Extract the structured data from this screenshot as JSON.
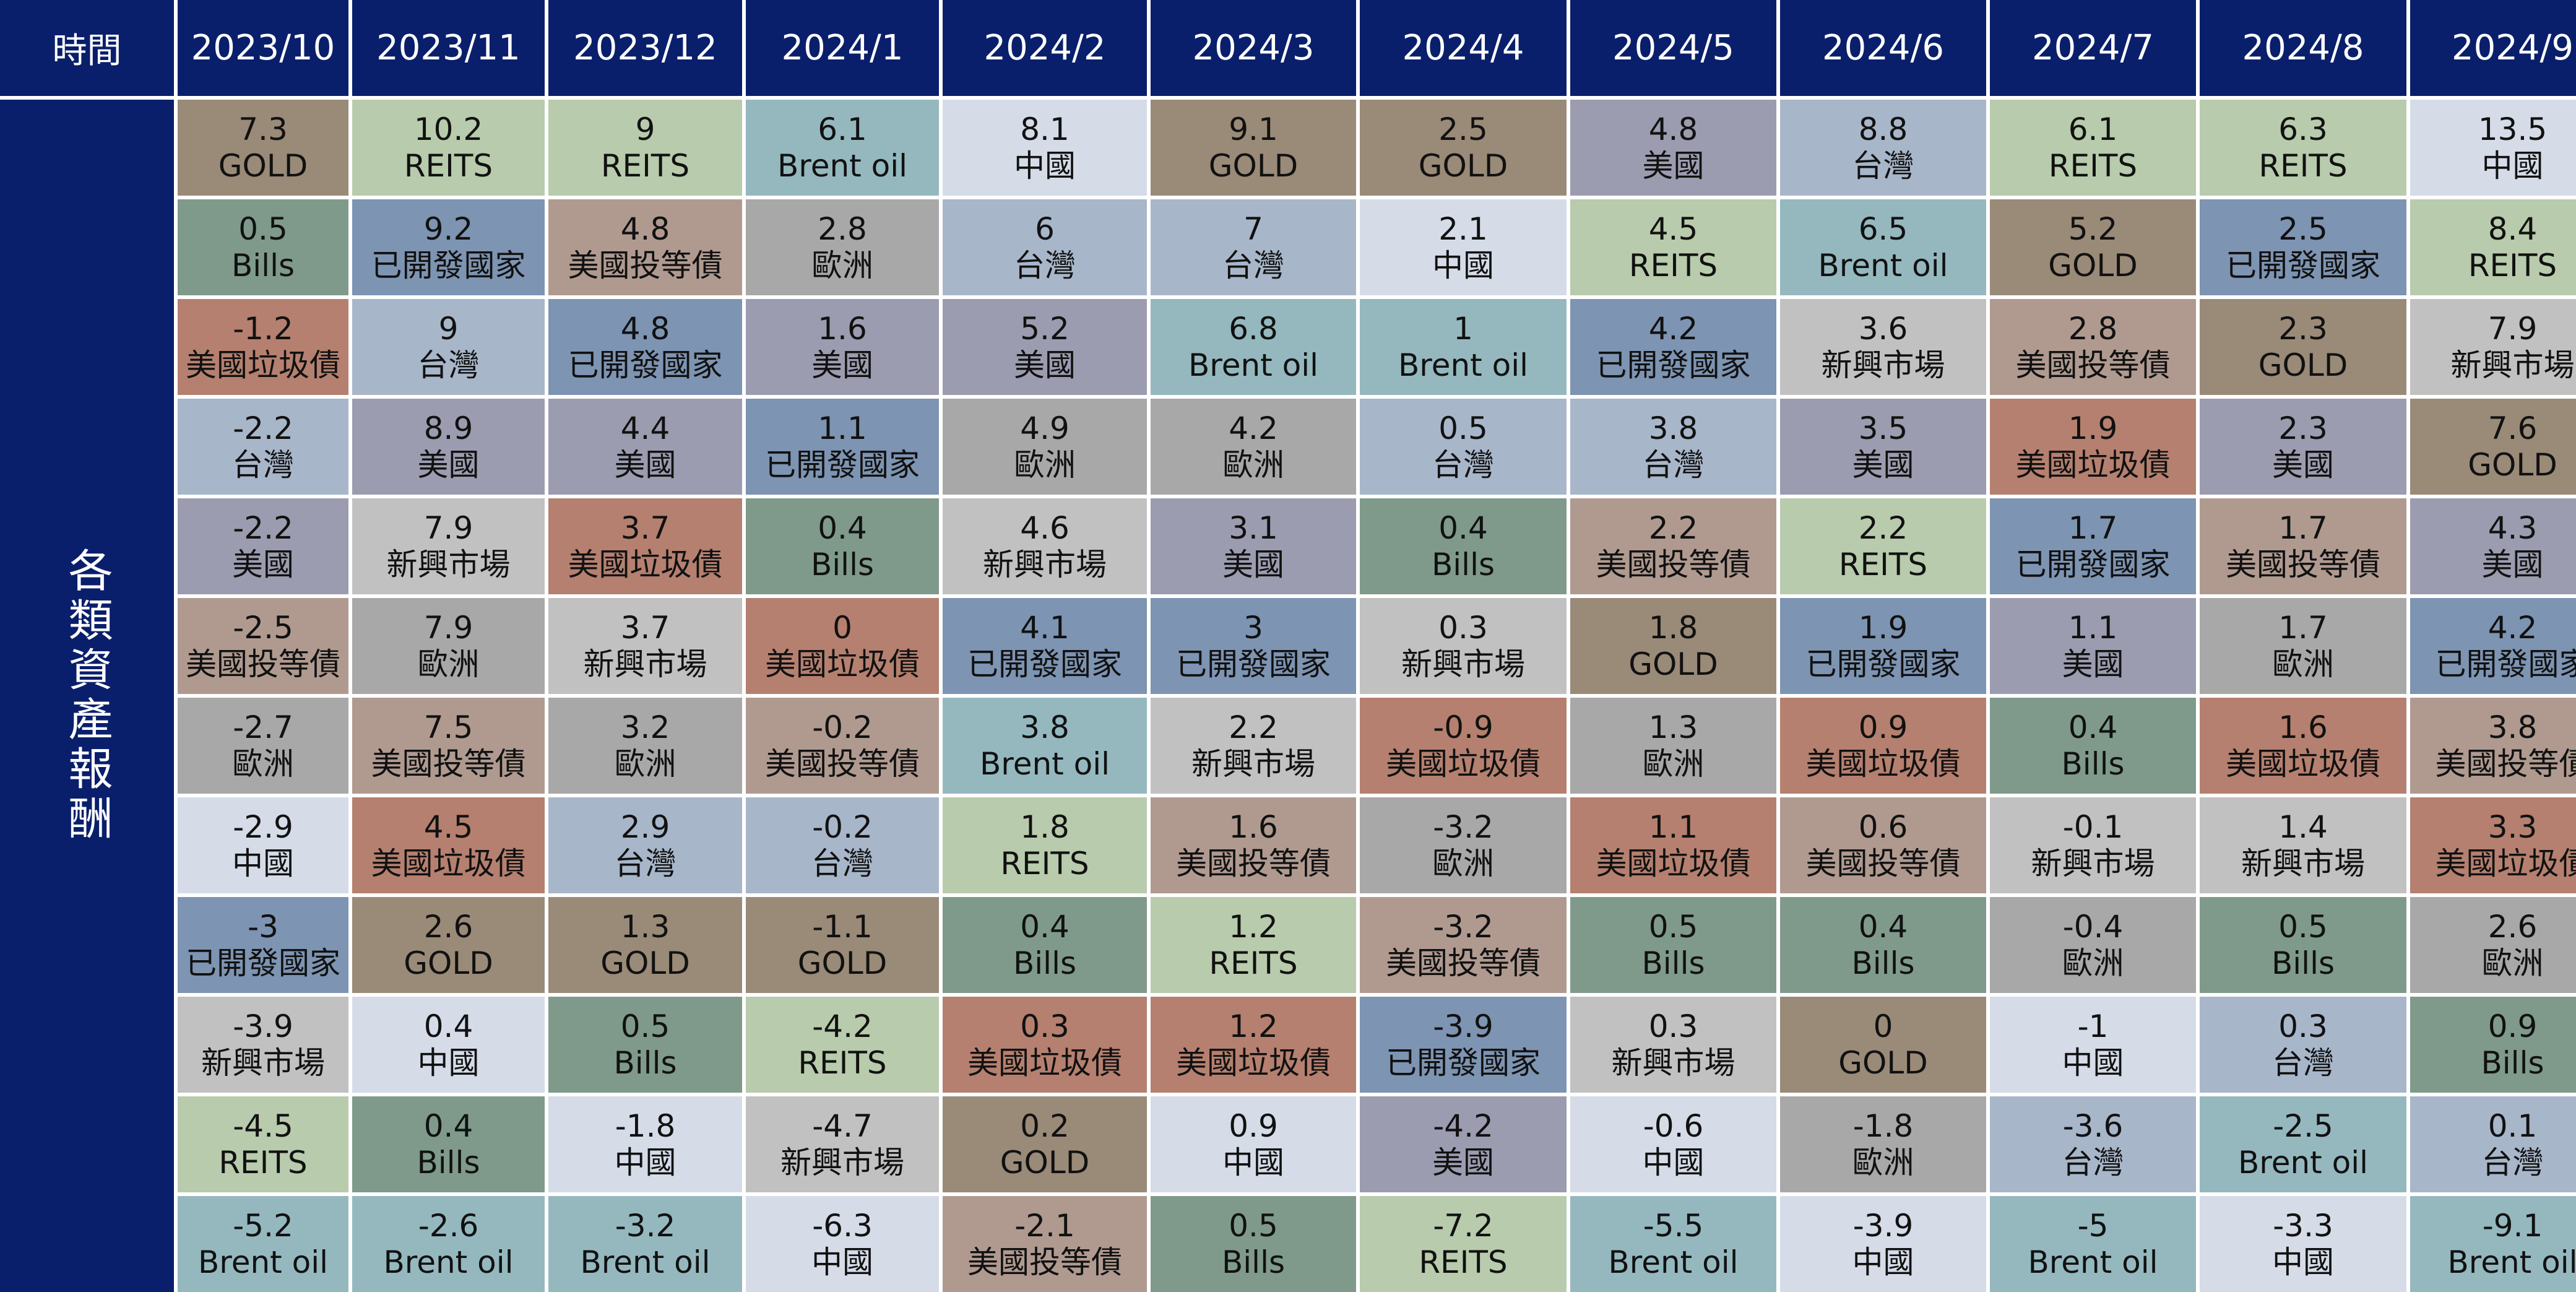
{
  "chart_data": {
    "type": "table",
    "corner_label": "時間",
    "row_label": "各類資產報酬",
    "months": [
      "2023/10",
      "2023/11",
      "2023/12",
      "2024/1",
      "2024/2",
      "2024/3",
      "2024/4",
      "2024/5",
      "2024/6",
      "2024/7",
      "2024/8",
      "2024/9"
    ],
    "asset_colors": {
      "GOLD": "#9a8a78",
      "REITS": "#b8cbac",
      "Brent oil": "#95b8bf",
      "中國": "#d5dce8",
      "Bills": "#7f9a8b",
      "已開發國家": "#7d94b2",
      "美國投等債": "#b09a90",
      "歐洲": "#a8a8a8",
      "台灣": "#a8b6ca",
      "美國": "#9c9cb0",
      "美國垃圾債": "#b5806f",
      "新興市場": "#c1c1c1"
    },
    "columns": [
      [
        [
          "7.3",
          "GOLD"
        ],
        [
          "0.5",
          "Bills"
        ],
        [
          "-1.2",
          "美國垃圾債"
        ],
        [
          "-2.2",
          "台灣"
        ],
        [
          "-2.2",
          "美國"
        ],
        [
          "-2.5",
          "美國投等債"
        ],
        [
          "-2.7",
          "歐洲"
        ],
        [
          "-2.9",
          "中國"
        ],
        [
          "-3",
          "已開發國家"
        ],
        [
          "-3.9",
          "新興市場"
        ],
        [
          "-4.5",
          "REITS"
        ],
        [
          "-5.2",
          "Brent oil"
        ]
      ],
      [
        [
          "10.2",
          "REITS"
        ],
        [
          "9.2",
          "已開發國家"
        ],
        [
          "9",
          "台灣"
        ],
        [
          "8.9",
          "美國"
        ],
        [
          "7.9",
          "新興市場"
        ],
        [
          "7.9",
          "歐洲"
        ],
        [
          "7.5",
          "美國投等債"
        ],
        [
          "4.5",
          "美國垃圾債"
        ],
        [
          "2.6",
          "GOLD"
        ],
        [
          "0.4",
          "中國"
        ],
        [
          "0.4",
          "Bills"
        ],
        [
          "-2.6",
          "Brent oil"
        ]
      ],
      [
        [
          "9",
          "REITS"
        ],
        [
          "4.8",
          "美國投等債"
        ],
        [
          "4.8",
          "已開發國家"
        ],
        [
          "4.4",
          "美國"
        ],
        [
          "3.7",
          "美國垃圾債"
        ],
        [
          "3.7",
          "新興市場"
        ],
        [
          "3.2",
          "歐洲"
        ],
        [
          "2.9",
          "台灣"
        ],
        [
          "1.3",
          "GOLD"
        ],
        [
          "0.5",
          "Bills"
        ],
        [
          "-1.8",
          "中國"
        ],
        [
          "-3.2",
          "Brent oil"
        ]
      ],
      [
        [
          "6.1",
          "Brent oil"
        ],
        [
          "2.8",
          "歐洲"
        ],
        [
          "1.6",
          "美國"
        ],
        [
          "1.1",
          "已開發國家"
        ],
        [
          "0.4",
          "Bills"
        ],
        [
          "0",
          "美國垃圾債"
        ],
        [
          "-0.2",
          "美國投等債"
        ],
        [
          "-0.2",
          "台灣"
        ],
        [
          "-1.1",
          "GOLD"
        ],
        [
          "-4.2",
          "REITS"
        ],
        [
          "-4.7",
          "新興市場"
        ],
        [
          "-6.3",
          "中國"
        ]
      ],
      [
        [
          "8.1",
          "中國"
        ],
        [
          "6",
          "台灣"
        ],
        [
          "5.2",
          "美國"
        ],
        [
          "4.9",
          "歐洲"
        ],
        [
          "4.6",
          "新興市場"
        ],
        [
          "4.1",
          "已開發國家"
        ],
        [
          "3.8",
          "Brent oil"
        ],
        [
          "1.8",
          "REITS"
        ],
        [
          "0.4",
          "Bills"
        ],
        [
          "0.3",
          "美國垃圾債"
        ],
        [
          "0.2",
          "GOLD"
        ],
        [
          "-2.1",
          "美國投等債"
        ]
      ],
      [
        [
          "9.1",
          "GOLD"
        ],
        [
          "7",
          "台灣"
        ],
        [
          "6.8",
          "Brent oil"
        ],
        [
          "4.2",
          "歐洲"
        ],
        [
          "3.1",
          "美國"
        ],
        [
          "3",
          "已開發國家"
        ],
        [
          "2.2",
          "新興市場"
        ],
        [
          "1.6",
          "美國投等債"
        ],
        [
          "1.2",
          "REITS"
        ],
        [
          "1.2",
          "美國垃圾債"
        ],
        [
          "0.9",
          "中國"
        ],
        [
          "0.5",
          "Bills"
        ]
      ],
      [
        [
          "2.5",
          "GOLD"
        ],
        [
          "2.1",
          "中國"
        ],
        [
          "1",
          "Brent oil"
        ],
        [
          "0.5",
          "台灣"
        ],
        [
          "0.4",
          "Bills"
        ],
        [
          "0.3",
          "新興市場"
        ],
        [
          "-0.9",
          "美國垃圾債"
        ],
        [
          "-3.2",
          "歐洲"
        ],
        [
          "-3.2",
          "美國投等債"
        ],
        [
          "-3.9",
          "已開發國家"
        ],
        [
          "-4.2",
          "美國"
        ],
        [
          "-7.2",
          "REITS"
        ]
      ],
      [
        [
          "4.8",
          "美國"
        ],
        [
          "4.5",
          "REITS"
        ],
        [
          "4.2",
          "已開發國家"
        ],
        [
          "3.8",
          "台灣"
        ],
        [
          "2.2",
          "美國投等債"
        ],
        [
          "1.8",
          "GOLD"
        ],
        [
          "1.3",
          "歐洲"
        ],
        [
          "1.1",
          "美國垃圾債"
        ],
        [
          "0.5",
          "Bills"
        ],
        [
          "0.3",
          "新興市場"
        ],
        [
          "-0.6",
          "中國"
        ],
        [
          "-5.5",
          "Brent oil"
        ]
      ],
      [
        [
          "8.8",
          "台灣"
        ],
        [
          "6.5",
          "Brent oil"
        ],
        [
          "3.6",
          "新興市場"
        ],
        [
          "3.5",
          "美國"
        ],
        [
          "2.2",
          "REITS"
        ],
        [
          "1.9",
          "已開發國家"
        ],
        [
          "0.9",
          "美國垃圾債"
        ],
        [
          "0.6",
          "美國投等債"
        ],
        [
          "0.4",
          "Bills"
        ],
        [
          "0",
          "GOLD"
        ],
        [
          "-1.8",
          "歐洲"
        ],
        [
          "-3.9",
          "中國"
        ]
      ],
      [
        [
          "6.1",
          "REITS"
        ],
        [
          "5.2",
          "GOLD"
        ],
        [
          "2.8",
          "美國投等債"
        ],
        [
          "1.9",
          "美國垃圾債"
        ],
        [
          "1.7",
          "已開發國家"
        ],
        [
          "1.1",
          "美國"
        ],
        [
          "0.4",
          "Bills"
        ],
        [
          "-0.1",
          "新興市場"
        ],
        [
          "-0.4",
          "歐洲"
        ],
        [
          "-1",
          "中國"
        ],
        [
          "-3.6",
          "台灣"
        ],
        [
          "-5",
          "Brent oil"
        ]
      ],
      [
        [
          "6.3",
          "REITS"
        ],
        [
          "2.5",
          "已開發國家"
        ],
        [
          "2.3",
          "GOLD"
        ],
        [
          "2.3",
          "美國"
        ],
        [
          "1.7",
          "美國投等債"
        ],
        [
          "1.7",
          "歐洲"
        ],
        [
          "1.6",
          "美國垃圾債"
        ],
        [
          "1.4",
          "新興市場"
        ],
        [
          "0.5",
          "Bills"
        ],
        [
          "0.3",
          "台灣"
        ],
        [
          "-2.5",
          "Brent oil"
        ],
        [
          "-3.3",
          "中國"
        ]
      ],
      [
        [
          "13.5",
          "中國"
        ],
        [
          "8.4",
          "REITS"
        ],
        [
          "7.9",
          "新興市場"
        ],
        [
          "7.6",
          "GOLD"
        ],
        [
          "4.3",
          "美國"
        ],
        [
          "4.2",
          "已開發國家"
        ],
        [
          "3.8",
          "美國投等債"
        ],
        [
          "3.3",
          "美國垃圾債"
        ],
        [
          "2.6",
          "歐洲"
        ],
        [
          "0.9",
          "Bills"
        ],
        [
          "0.1",
          "台灣"
        ],
        [
          "-9.1",
          "Brent oil"
        ]
      ]
    ]
  }
}
